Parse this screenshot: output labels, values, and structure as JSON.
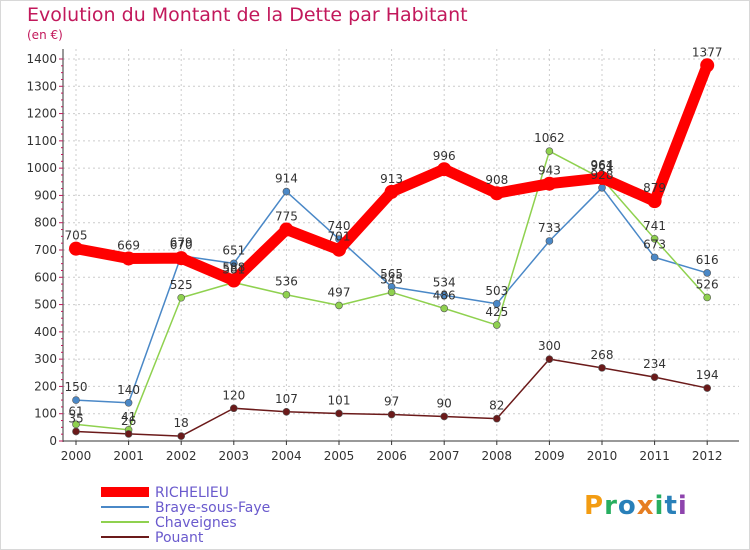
{
  "chart_data": {
    "type": "line",
    "title": "Evolution du Montant de la Dette par Habitant",
    "unit": "(en €)",
    "xlabel": "",
    "ylabel": "",
    "x": [
      "2000",
      "2001",
      "2002",
      "2003",
      "2004",
      "2005",
      "2006",
      "2007",
      "2008",
      "2009",
      "2010",
      "2011",
      "2012"
    ],
    "ylim": [
      0,
      1400
    ],
    "yticks": [
      0,
      100,
      200,
      300,
      400,
      500,
      600,
      700,
      800,
      900,
      1000,
      1100,
      1200,
      1300,
      1400
    ],
    "grid": true,
    "legend": "bottom-left",
    "series": [
      {
        "name": "RICHELIEU",
        "color": "#ff0000",
        "values": [
          705,
          669,
          670,
          588,
          775,
          701,
          913,
          996,
          908,
          943,
          964,
          879,
          1377
        ]
      },
      {
        "name": "Braye-sous-Faye",
        "color": "#4a88c7",
        "values": [
          150,
          140,
          679,
          651,
          914,
          740,
          565,
          534,
          503,
          733,
          928,
          673,
          616
        ]
      },
      {
        "name": "Chaveignes",
        "color": "#8fd14f",
        "values": [
          61,
          41,
          525,
          581,
          536,
          497,
          545,
          486,
          425,
          1062,
          961,
          741,
          526
        ]
      },
      {
        "name": "Pouant",
        "color": "#6b1a1a",
        "values": [
          35,
          26,
          18,
          120,
          107,
          101,
          97,
          90,
          82,
          300,
          268,
          234,
          194
        ]
      }
    ]
  },
  "logo": {
    "text": "Proxiti",
    "letters": [
      "P",
      "r",
      "o",
      "x",
      "i",
      "t",
      "i"
    ],
    "colors": [
      "#f39c12",
      "#27ae60",
      "#2980b9",
      "#e67e22",
      "#27ae60",
      "#2980b9",
      "#8e44ad"
    ]
  }
}
